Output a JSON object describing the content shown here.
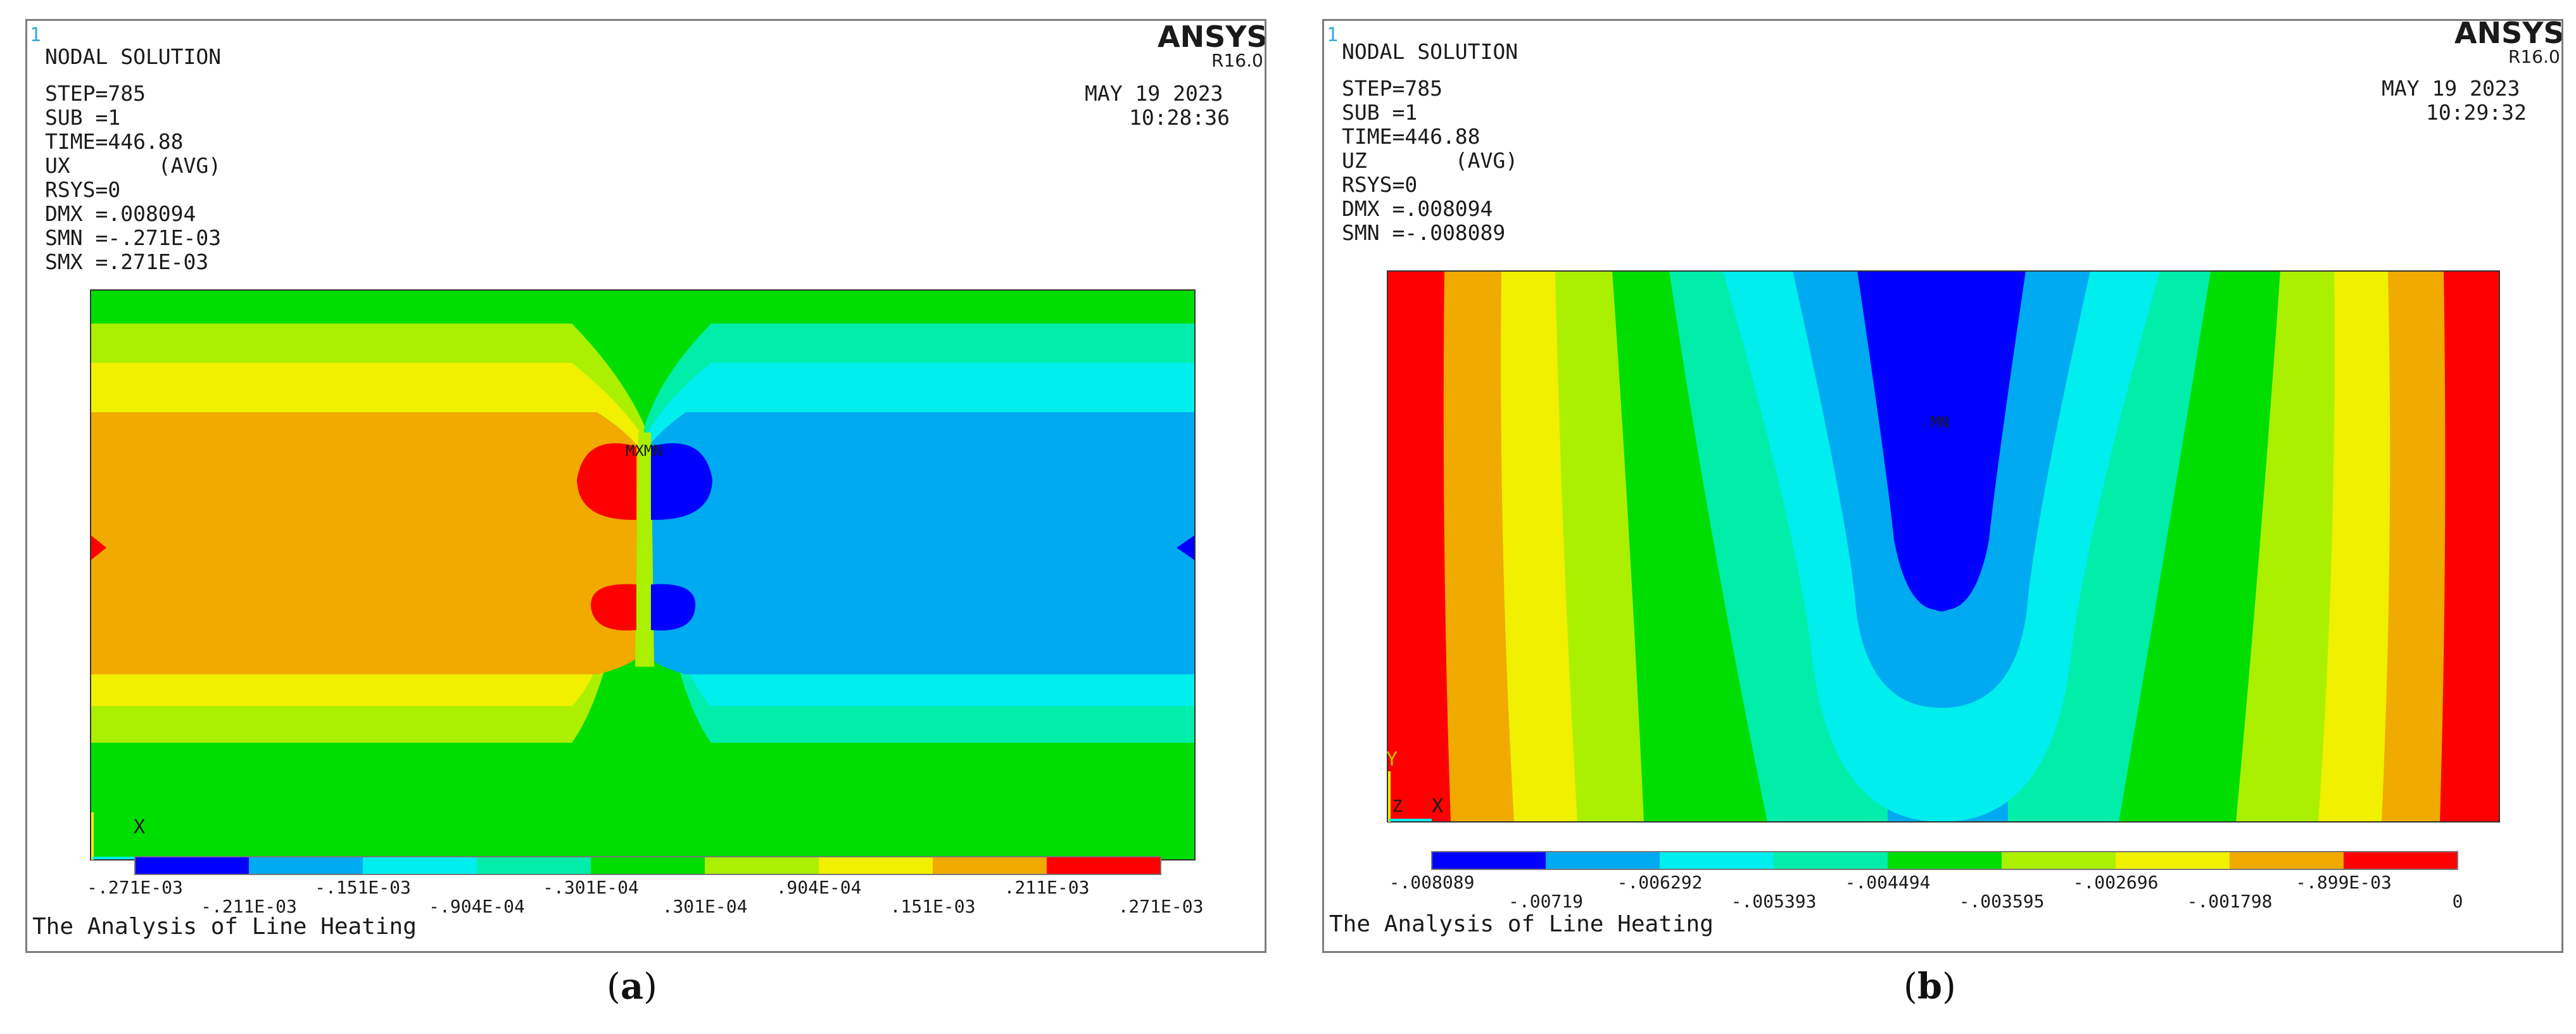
{
  "panels": [
    {
      "id": "a",
      "frame_number": "1",
      "header": [
        "NODAL SOLUTION",
        "STEP=785",
        "SUB =1",
        "TIME=446.88",
        "UX       (AVG)",
        "RSYS=0",
        "DMX =.008094",
        "SMN =-.271E-03",
        "SMX =.271E-03"
      ],
      "brand": "ANSYS",
      "release": "R16.0",
      "date": "MAY 19 2023",
      "time": "10:28:36",
      "marker_labels": [
        "MXMN"
      ],
      "axis_labels": [
        "X"
      ],
      "legend_labels": [
        "-.271E-03",
        "-.211E-03",
        "-.151E-03",
        "-.904E-04",
        "-.301E-04",
        ".301E-04",
        ".904E-04",
        ".151E-03",
        ".211E-03",
        ".271E-03"
      ],
      "footer": "The Analysis of Line Heating",
      "caption_letter": "a"
    },
    {
      "id": "b",
      "frame_number": "1",
      "header": [
        "NODAL SOLUTION",
        "STEP=785",
        "SUB =1",
        "TIME=446.88",
        "UZ       (AVG)",
        "RSYS=0",
        "DMX =.008094",
        "SMN =-.008089"
      ],
      "brand": "ANSYS",
      "release": "R16.0",
      "date": "MAY 19 2023",
      "time": "10:29:32",
      "marker_labels": [
        "MN"
      ],
      "axis_labels": [
        "Y",
        "Z",
        "X"
      ],
      "legend_labels": [
        "-.008089",
        "-.00719",
        "-.006292",
        "-.005393",
        "-.004494",
        "-.003595",
        "-.002696",
        "-.001798",
        "-.899E-03",
        "0"
      ],
      "footer": "The Analysis of Line Heating",
      "caption_letter": "b"
    }
  ],
  "colors": {
    "contour_palette": [
      "#0000ff",
      "#00aaf0",
      "#00eeee",
      "#00eeaa",
      "#00dd00",
      "#aaf000",
      "#f0f000",
      "#f0aa00",
      "#ff0000"
    ],
    "frame": "#7d7d7d",
    "background": "#ffffff"
  }
}
